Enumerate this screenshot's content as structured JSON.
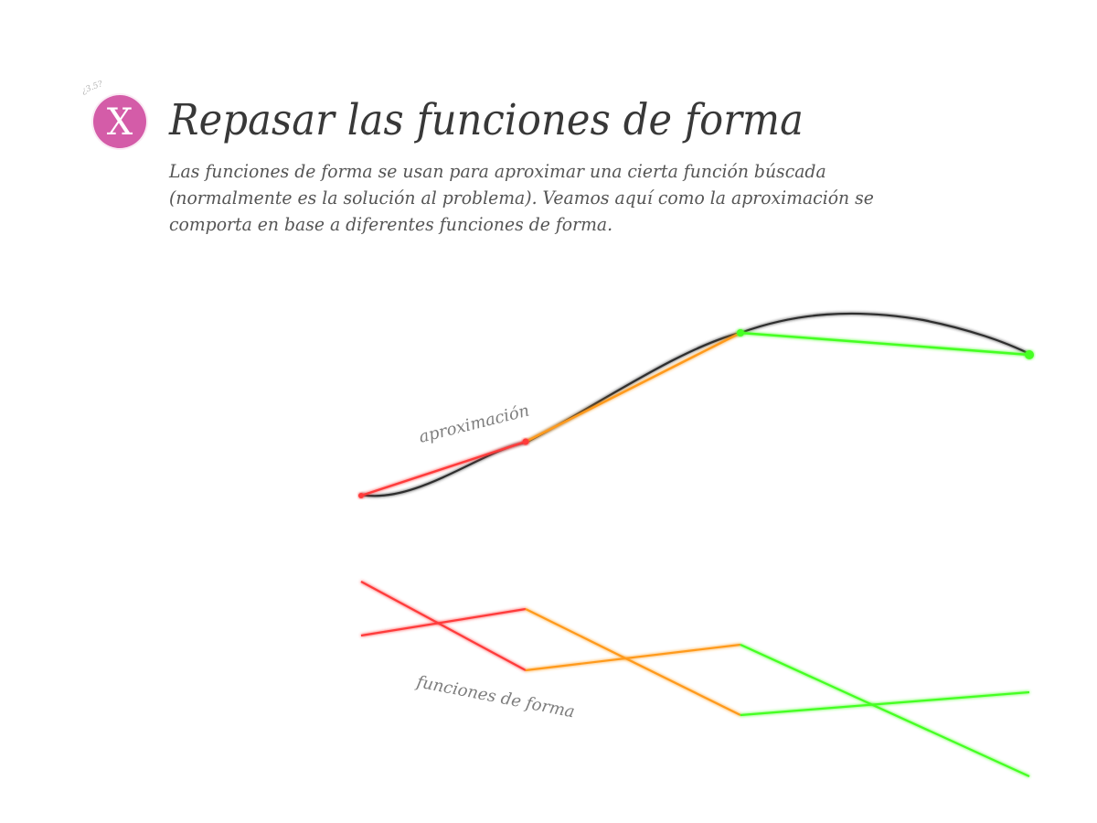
{
  "header": {
    "version": "¿3.5?",
    "close_symbol": "X",
    "title": "Repasar las funciones de forma",
    "description": "Las funciones de forma se usan para aproximar una cierta función búscada (normalmente es la solución al problema). Veamos aquí como la aproximación se comporta en base a diferentes funciones de forma."
  },
  "diagram": {
    "approximation_label": "aproximación",
    "shape_functions_label": "funciones de forma"
  },
  "colors": {
    "accent": "#d45ca8",
    "red": "#ff3b3b",
    "orange": "#ff9a1a",
    "green": "#44ff22",
    "curve": "#333333",
    "text": "#383838"
  }
}
